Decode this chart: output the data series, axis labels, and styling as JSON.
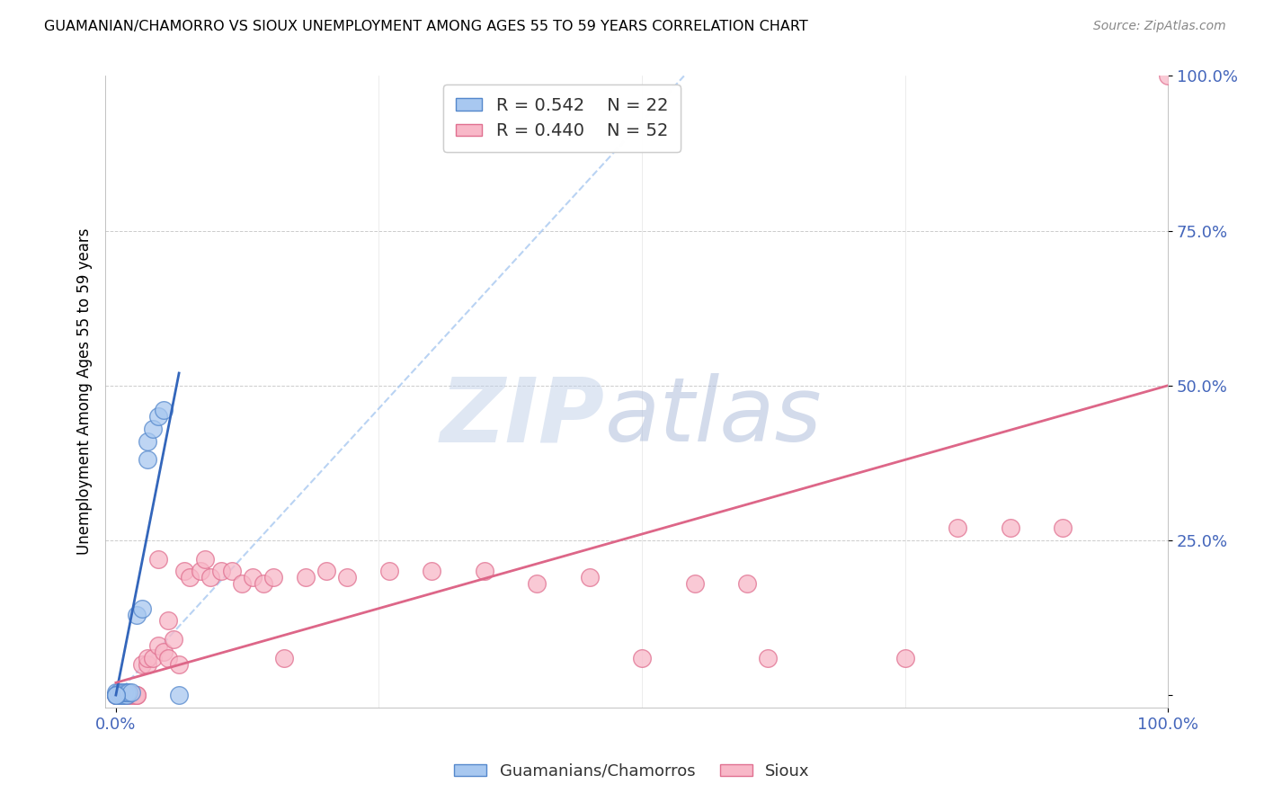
{
  "title": "GUAMANIAN/CHAMORRO VS SIOUX UNEMPLOYMENT AMONG AGES 55 TO 59 YEARS CORRELATION CHART",
  "source": "Source: ZipAtlas.com",
  "ylabel": "Unemployment Among Ages 55 to 59 years",
  "watermark_zip": "ZIP",
  "watermark_atlas": "atlas",
  "legend_blue_R": "0.542",
  "legend_blue_N": "22",
  "legend_pink_R": "0.440",
  "legend_pink_N": "52",
  "blue_color": "#A8C8F0",
  "blue_edge_color": "#5588CC",
  "pink_color": "#F8B8C8",
  "pink_edge_color": "#E07090",
  "blue_line_color": "#3366BB",
  "pink_line_color": "#DD6688",
  "blue_scatter": [
    [
      0.0,
      0.0
    ],
    [
      0.005,
      0.0
    ],
    [
      0.005,
      0.0
    ],
    [
      0.008,
      0.0
    ],
    [
      0.01,
      0.0
    ],
    [
      0.0,
      0.005
    ],
    [
      0.003,
      0.005
    ],
    [
      0.005,
      0.005
    ],
    [
      0.008,
      0.005
    ],
    [
      0.01,
      0.005
    ],
    [
      0.012,
      0.005
    ],
    [
      0.015,
      0.005
    ],
    [
      0.02,
      0.13
    ],
    [
      0.025,
      0.14
    ],
    [
      0.03,
      0.38
    ],
    [
      0.03,
      0.41
    ],
    [
      0.035,
      0.43
    ],
    [
      0.04,
      0.45
    ],
    [
      0.045,
      0.46
    ],
    [
      0.06,
      0.0
    ],
    [
      0.0,
      0.0
    ],
    [
      0.0,
      0.0
    ]
  ],
  "pink_scatter": [
    [
      0.0,
      0.0
    ],
    [
      0.0,
      0.0
    ],
    [
      0.003,
      0.0
    ],
    [
      0.005,
      0.0
    ],
    [
      0.008,
      0.0
    ],
    [
      0.01,
      0.0
    ],
    [
      0.01,
      0.0
    ],
    [
      0.013,
      0.0
    ],
    [
      0.015,
      0.0
    ],
    [
      0.018,
      0.0
    ],
    [
      0.02,
      0.0
    ],
    [
      0.02,
      0.0
    ],
    [
      0.025,
      0.05
    ],
    [
      0.03,
      0.05
    ],
    [
      0.03,
      0.06
    ],
    [
      0.035,
      0.06
    ],
    [
      0.04,
      0.08
    ],
    [
      0.04,
      0.22
    ],
    [
      0.045,
      0.07
    ],
    [
      0.05,
      0.06
    ],
    [
      0.05,
      0.12
    ],
    [
      0.055,
      0.09
    ],
    [
      0.06,
      0.05
    ],
    [
      0.065,
      0.2
    ],
    [
      0.07,
      0.19
    ],
    [
      0.08,
      0.2
    ],
    [
      0.085,
      0.22
    ],
    [
      0.09,
      0.19
    ],
    [
      0.1,
      0.2
    ],
    [
      0.11,
      0.2
    ],
    [
      0.12,
      0.18
    ],
    [
      0.13,
      0.19
    ],
    [
      0.14,
      0.18
    ],
    [
      0.15,
      0.19
    ],
    [
      0.16,
      0.06
    ],
    [
      0.18,
      0.19
    ],
    [
      0.2,
      0.2
    ],
    [
      0.22,
      0.19
    ],
    [
      0.26,
      0.2
    ],
    [
      0.3,
      0.2
    ],
    [
      0.35,
      0.2
    ],
    [
      0.4,
      0.18
    ],
    [
      0.45,
      0.19
    ],
    [
      0.5,
      0.06
    ],
    [
      0.55,
      0.18
    ],
    [
      0.6,
      0.18
    ],
    [
      0.62,
      0.06
    ],
    [
      0.75,
      0.06
    ],
    [
      0.8,
      0.27
    ],
    [
      0.85,
      0.27
    ],
    [
      0.9,
      0.27
    ],
    [
      1.0,
      1.0
    ]
  ],
  "blue_trendline_x": [
    0.0,
    0.06
  ],
  "blue_trendline_y": [
    0.0,
    0.52
  ],
  "pink_trendline_x": [
    0.0,
    1.0
  ],
  "pink_trendline_y": [
    0.02,
    0.5
  ],
  "blue_refline_x": [
    0.0,
    0.54
  ],
  "blue_refline_y": [
    0.0,
    1.0
  ],
  "xlim": [
    -0.01,
    1.0
  ],
  "ylim": [
    -0.02,
    1.0
  ],
  "xtick_positions": [
    0.0,
    1.0
  ],
  "xtick_labels": [
    "0.0%",
    "100.0%"
  ],
  "ytick_positions": [
    0.0,
    0.25,
    0.5,
    0.75,
    1.0
  ],
  "ytick_labels": [
    "",
    "25.0%",
    "50.0%",
    "75.0%",
    "100.0%"
  ],
  "grid_yticks": [
    0.25,
    0.5,
    0.75
  ],
  "background_color": "#FFFFFF"
}
